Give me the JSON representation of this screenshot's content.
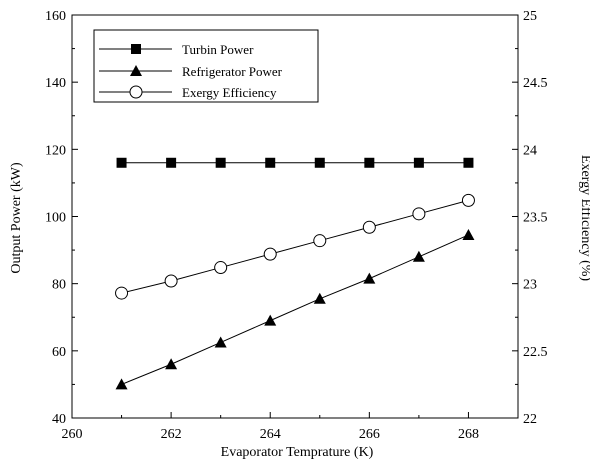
{
  "chart_data": {
    "type": "line",
    "xlabel": "Evaporator Temprature (K)",
    "ylabel_left": "Output Power (kW)",
    "ylabel_right": "Exergy Efficiency (%)",
    "xlim": [
      260,
      269
    ],
    "ylim_left": [
      40,
      160
    ],
    "ylim_right": [
      22,
      25
    ],
    "x_ticks": [
      260,
      262,
      264,
      266,
      268
    ],
    "y_ticks_left": [
      40,
      60,
      80,
      100,
      120,
      140,
      160
    ],
    "y_ticks_right": [
      22,
      22.5,
      23,
      23.5,
      24,
      24.5,
      25
    ],
    "x": [
      261,
      262,
      263,
      264,
      265,
      266,
      267,
      268
    ],
    "series": [
      {
        "name": "Turbin Power",
        "axis": "left",
        "marker": "square-filled",
        "values": [
          116,
          116,
          116,
          116,
          116,
          116,
          116,
          116
        ]
      },
      {
        "name": "Refrigerator Power",
        "axis": "left",
        "marker": "triangle-filled",
        "values": [
          50,
          56,
          62.5,
          69,
          75.5,
          81.5,
          88,
          94.5
        ]
      },
      {
        "name": "Exergy Efficiency",
        "axis": "right",
        "marker": "circle-open",
        "values": [
          22.93,
          23.02,
          23.12,
          23.22,
          23.32,
          23.42,
          23.52,
          23.62
        ]
      }
    ],
    "legend_position": "top-left",
    "grid": false
  },
  "ytick_labels_right": [
    "22",
    "22.5",
    "23",
    "23.5",
    "24",
    "24.5",
    "25"
  ]
}
